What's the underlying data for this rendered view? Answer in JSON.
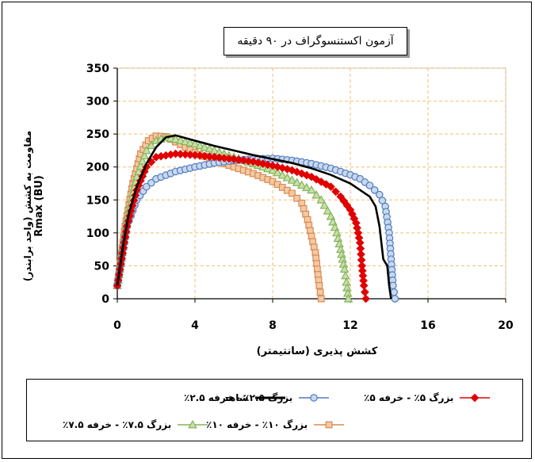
{
  "chart_data": {
    "type": "line",
    "title": "آزمون اکستنسوگراف در ۹۰ دقیقه",
    "xlabel": "کشش پذیری (سانتیمتر)",
    "ylabel_line1": "مقاومت به کشش (واحد برابندر)",
    "ylabel_line2": "Rmax (BU)",
    "xlim": [
      0,
      20
    ],
    "ylim": [
      0,
      350
    ],
    "x_ticks": [
      "0",
      "4",
      "8",
      "12",
      "16",
      "20"
    ],
    "y_ticks": [
      "0",
      "50",
      "100",
      "150",
      "200",
      "250",
      "300",
      "350"
    ],
    "grid": true,
    "legend_position": "bottom",
    "series": [
      {
        "name": "شاهد",
        "color": "#000000",
        "marker": "none",
        "points": [
          [
            0,
            20
          ],
          [
            0.3,
            80
          ],
          [
            0.6,
            130
          ],
          [
            1,
            170
          ],
          [
            1.5,
            205
          ],
          [
            2,
            230
          ],
          [
            2.5,
            245
          ],
          [
            3,
            248
          ],
          [
            4,
            240
          ],
          [
            5,
            232
          ],
          [
            6,
            225
          ],
          [
            7,
            218
          ],
          [
            8,
            212
          ],
          [
            9,
            206
          ],
          [
            10,
            198
          ],
          [
            11,
            188
          ],
          [
            12,
            175
          ],
          [
            12.5,
            165
          ],
          [
            13,
            155
          ],
          [
            13.3,
            140
          ],
          [
            13.5,
            110
          ],
          [
            13.7,
            60
          ],
          [
            13.9,
            50
          ],
          [
            14,
            20
          ],
          [
            14.1,
            0
          ]
        ]
      },
      {
        "name": "بزرگ ۲.۵٪ - خرفه ۲.۵٪",
        "color": "#4f7bc0",
        "fill": "#c9d8ee",
        "marker": "circle",
        "points": [
          [
            0,
            20
          ],
          [
            0.5,
            110
          ],
          [
            1,
            150
          ],
          [
            1.5,
            170
          ],
          [
            2,
            182
          ],
          [
            3,
            193
          ],
          [
            4,
            200
          ],
          [
            5,
            206
          ],
          [
            6,
            210
          ],
          [
            7,
            212
          ],
          [
            8,
            213
          ],
          [
            9,
            210
          ],
          [
            10,
            205
          ],
          [
            11,
            198
          ],
          [
            12,
            188
          ],
          [
            12.5,
            182
          ],
          [
            13,
            172
          ],
          [
            13.5,
            158
          ],
          [
            13.8,
            140
          ],
          [
            14,
            100
          ],
          [
            14.1,
            60
          ],
          [
            14.2,
            20
          ],
          [
            14.3,
            0
          ]
        ]
      },
      {
        "name": "بزرگ ۵٪ - خرفه ۵٪",
        "color": "#e00000",
        "marker": "diamond",
        "points": [
          [
            0,
            20
          ],
          [
            0.5,
            110
          ],
          [
            1,
            165
          ],
          [
            1.5,
            200
          ],
          [
            2,
            215
          ],
          [
            3,
            220
          ],
          [
            4,
            218
          ],
          [
            5,
            215
          ],
          [
            6,
            212
          ],
          [
            7,
            208
          ],
          [
            8,
            202
          ],
          [
            9,
            195
          ],
          [
            10,
            185
          ],
          [
            11,
            170
          ],
          [
            11.5,
            155
          ],
          [
            12,
            135
          ],
          [
            12.3,
            115
          ],
          [
            12.5,
            85
          ],
          [
            12.6,
            50
          ],
          [
            12.7,
            20
          ],
          [
            12.8,
            0
          ]
        ]
      },
      {
        "name": "بزرگ ۷.۵٪ - خرفه ۷.۵٪",
        "color": "#86b25a",
        "fill": "#c6e0a8",
        "marker": "triangle",
        "points": [
          [
            0,
            20
          ],
          [
            0.5,
            120
          ],
          [
            1,
            185
          ],
          [
            1.5,
            225
          ],
          [
            2,
            240
          ],
          [
            2.5,
            245
          ],
          [
            3,
            242
          ],
          [
            4,
            235
          ],
          [
            5,
            225
          ],
          [
            6,
            215
          ],
          [
            7,
            205
          ],
          [
            8,
            195
          ],
          [
            9,
            180
          ],
          [
            10,
            165
          ],
          [
            10.5,
            150
          ],
          [
            11,
            125
          ],
          [
            11.3,
            100
          ],
          [
            11.5,
            75
          ],
          [
            11.7,
            45
          ],
          [
            11.8,
            25
          ],
          [
            11.9,
            0
          ]
        ]
      },
      {
        "name": "بزرگ ۱۰٪ - خرفه ۱۰٪",
        "color": "#d98a50",
        "fill": "#f4c9a4",
        "marker": "square",
        "points": [
          [
            0,
            20
          ],
          [
            0.4,
            110
          ],
          [
            0.8,
            175
          ],
          [
            1.2,
            220
          ],
          [
            1.6,
            240
          ],
          [
            2,
            247
          ],
          [
            2.5,
            246
          ],
          [
            3,
            238
          ],
          [
            4,
            222
          ],
          [
            5,
            210
          ],
          [
            6,
            200
          ],
          [
            7,
            190
          ],
          [
            8,
            178
          ],
          [
            9,
            160
          ],
          [
            9.5,
            145
          ],
          [
            9.8,
            120
          ],
          [
            10,
            95
          ],
          [
            10.2,
            70
          ],
          [
            10.3,
            45
          ],
          [
            10.4,
            20
          ],
          [
            10.5,
            0
          ]
        ]
      }
    ]
  }
}
